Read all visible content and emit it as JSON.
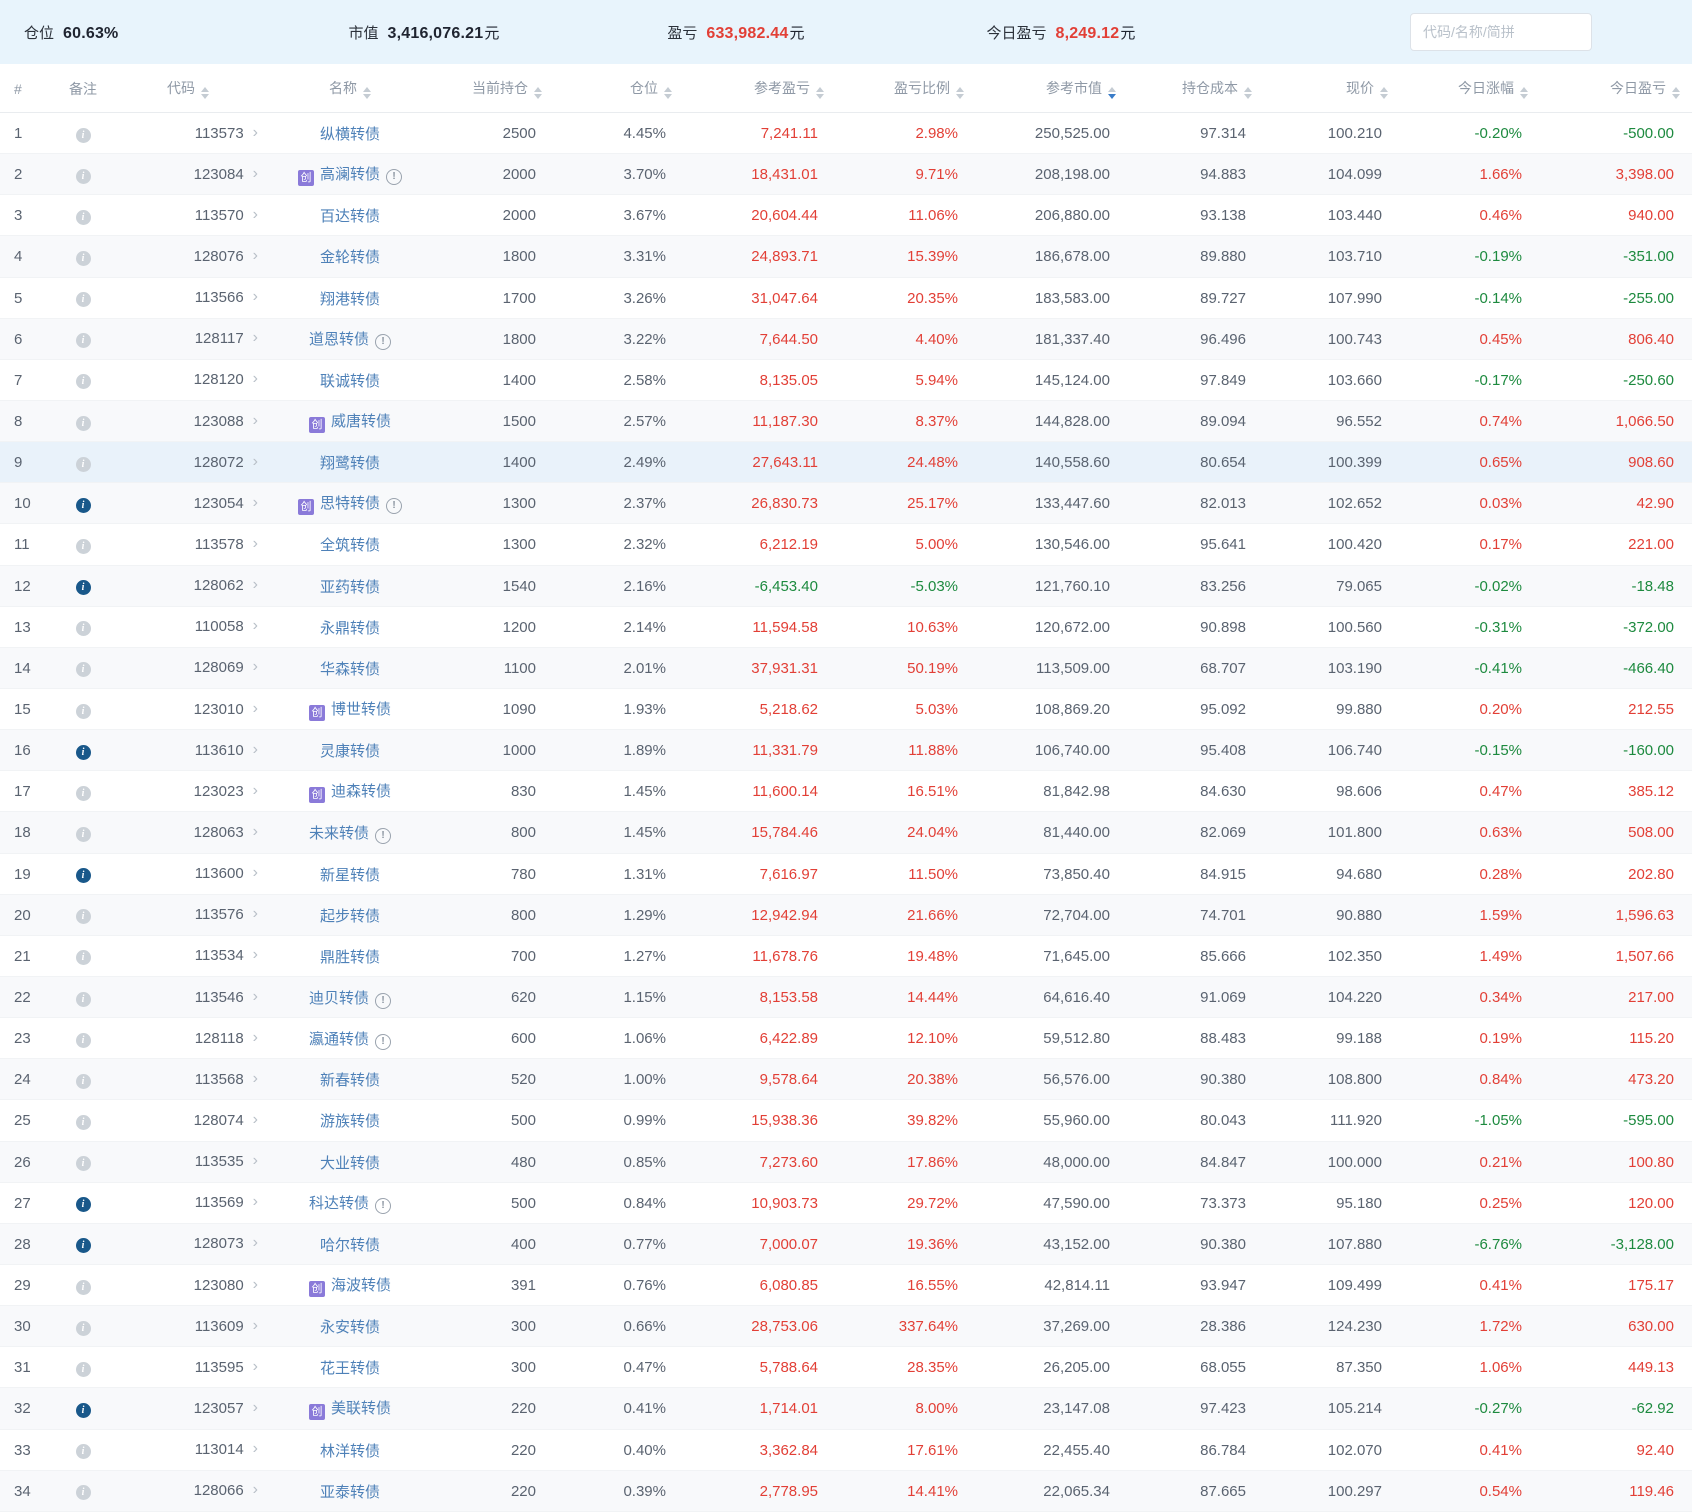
{
  "stats": {
    "position_label": "仓位",
    "position_value": "60.63%",
    "market_value_label": "市值",
    "market_value": "3,416,076.21",
    "pnl_label": "盈亏",
    "pnl_value": "633,982.44",
    "today_pnl_label": "今日盈亏",
    "today_pnl_value": "8,249.12",
    "currency_suffix": "元",
    "search_placeholder": "代码/名称/简拼"
  },
  "colors": {
    "up_red": "#e23f36",
    "down_green": "#1d8a3f",
    "name_blue": "#4e81b8",
    "badge_purple": "#8a7ad9",
    "note_blue": "#19588a",
    "bar_bg": "#e8f4fc"
  },
  "table": {
    "columns": [
      "#",
      "备注",
      "代码",
      "名称",
      "当前持仓",
      "仓位",
      "参考盈亏",
      "盈亏比例",
      "参考市值",
      "持仓成本",
      "现价",
      "今日涨幅",
      "今日盈亏"
    ],
    "sorted_column": "参考市值",
    "sort_direction": "desc",
    "cyb_badge": "创",
    "rows": [
      {
        "num": 1,
        "note": false,
        "code": "113573",
        "name": "纵横转债",
        "cyb": false,
        "warn": false,
        "qty": "2500",
        "pos": "4.45%",
        "pnl": "7,241.11",
        "ratio": "2.98%",
        "mv": "250,525.00",
        "cost": "97.314",
        "price": "100.210",
        "chg": "-0.20%",
        "today": "-500.00",
        "highlight": false
      },
      {
        "num": 2,
        "note": false,
        "code": "123084",
        "name": "高澜转债",
        "cyb": true,
        "warn": true,
        "qty": "2000",
        "pos": "3.70%",
        "pnl": "18,431.01",
        "ratio": "9.71%",
        "mv": "208,198.00",
        "cost": "94.883",
        "price": "104.099",
        "chg": "1.66%",
        "today": "3,398.00",
        "highlight": false
      },
      {
        "num": 3,
        "note": false,
        "code": "113570",
        "name": "百达转债",
        "cyb": false,
        "warn": false,
        "qty": "2000",
        "pos": "3.67%",
        "pnl": "20,604.44",
        "ratio": "11.06%",
        "mv": "206,880.00",
        "cost": "93.138",
        "price": "103.440",
        "chg": "0.46%",
        "today": "940.00",
        "highlight": false
      },
      {
        "num": 4,
        "note": false,
        "code": "128076",
        "name": "金轮转债",
        "cyb": false,
        "warn": false,
        "qty": "1800",
        "pos": "3.31%",
        "pnl": "24,893.71",
        "ratio": "15.39%",
        "mv": "186,678.00",
        "cost": "89.880",
        "price": "103.710",
        "chg": "-0.19%",
        "today": "-351.00",
        "highlight": false
      },
      {
        "num": 5,
        "note": false,
        "code": "113566",
        "name": "翔港转债",
        "cyb": false,
        "warn": false,
        "qty": "1700",
        "pos": "3.26%",
        "pnl": "31,047.64",
        "ratio": "20.35%",
        "mv": "183,583.00",
        "cost": "89.727",
        "price": "107.990",
        "chg": "-0.14%",
        "today": "-255.00",
        "highlight": false
      },
      {
        "num": 6,
        "note": false,
        "code": "128117",
        "name": "道恩转债",
        "cyb": false,
        "warn": true,
        "qty": "1800",
        "pos": "3.22%",
        "pnl": "7,644.50",
        "ratio": "4.40%",
        "mv": "181,337.40",
        "cost": "96.496",
        "price": "100.743",
        "chg": "0.45%",
        "today": "806.40",
        "highlight": false
      },
      {
        "num": 7,
        "note": false,
        "code": "128120",
        "name": "联诚转债",
        "cyb": false,
        "warn": false,
        "qty": "1400",
        "pos": "2.58%",
        "pnl": "8,135.05",
        "ratio": "5.94%",
        "mv": "145,124.00",
        "cost": "97.849",
        "price": "103.660",
        "chg": "-0.17%",
        "today": "-250.60",
        "highlight": false
      },
      {
        "num": 8,
        "note": false,
        "code": "123088",
        "name": "威唐转债",
        "cyb": true,
        "warn": false,
        "qty": "1500",
        "pos": "2.57%",
        "pnl": "11,187.30",
        "ratio": "8.37%",
        "mv": "144,828.00",
        "cost": "89.094",
        "price": "96.552",
        "chg": "0.74%",
        "today": "1,066.50",
        "highlight": false
      },
      {
        "num": 9,
        "note": false,
        "code": "128072",
        "name": "翔鹭转债",
        "cyb": false,
        "warn": false,
        "qty": "1400",
        "pos": "2.49%",
        "pnl": "27,643.11",
        "ratio": "24.48%",
        "mv": "140,558.60",
        "cost": "80.654",
        "price": "100.399",
        "chg": "0.65%",
        "today": "908.60",
        "highlight": true
      },
      {
        "num": 10,
        "note": true,
        "code": "123054",
        "name": "思特转债",
        "cyb": true,
        "warn": true,
        "qty": "1300",
        "pos": "2.37%",
        "pnl": "26,830.73",
        "ratio": "25.17%",
        "mv": "133,447.60",
        "cost": "82.013",
        "price": "102.652",
        "chg": "0.03%",
        "today": "42.90",
        "highlight": false
      },
      {
        "num": 11,
        "note": false,
        "code": "113578",
        "name": "全筑转债",
        "cyb": false,
        "warn": false,
        "qty": "1300",
        "pos": "2.32%",
        "pnl": "6,212.19",
        "ratio": "5.00%",
        "mv": "130,546.00",
        "cost": "95.641",
        "price": "100.420",
        "chg": "0.17%",
        "today": "221.00",
        "highlight": false
      },
      {
        "num": 12,
        "note": true,
        "code": "128062",
        "name": "亚药转债",
        "cyb": false,
        "warn": false,
        "qty": "1540",
        "pos": "2.16%",
        "pnl": "-6,453.40",
        "ratio": "-5.03%",
        "mv": "121,760.10",
        "cost": "83.256",
        "price": "79.065",
        "chg": "-0.02%",
        "today": "-18.48",
        "highlight": false
      },
      {
        "num": 13,
        "note": false,
        "code": "110058",
        "name": "永鼎转债",
        "cyb": false,
        "warn": false,
        "qty": "1200",
        "pos": "2.14%",
        "pnl": "11,594.58",
        "ratio": "10.63%",
        "mv": "120,672.00",
        "cost": "90.898",
        "price": "100.560",
        "chg": "-0.31%",
        "today": "-372.00",
        "highlight": false
      },
      {
        "num": 14,
        "note": false,
        "code": "128069",
        "name": "华森转债",
        "cyb": false,
        "warn": false,
        "qty": "1100",
        "pos": "2.01%",
        "pnl": "37,931.31",
        "ratio": "50.19%",
        "mv": "113,509.00",
        "cost": "68.707",
        "price": "103.190",
        "chg": "-0.41%",
        "today": "-466.40",
        "highlight": false
      },
      {
        "num": 15,
        "note": false,
        "code": "123010",
        "name": "博世转债",
        "cyb": true,
        "warn": false,
        "qty": "1090",
        "pos": "1.93%",
        "pnl": "5,218.62",
        "ratio": "5.03%",
        "mv": "108,869.20",
        "cost": "95.092",
        "price": "99.880",
        "chg": "0.20%",
        "today": "212.55",
        "highlight": false
      },
      {
        "num": 16,
        "note": true,
        "code": "113610",
        "name": "灵康转债",
        "cyb": false,
        "warn": false,
        "qty": "1000",
        "pos": "1.89%",
        "pnl": "11,331.79",
        "ratio": "11.88%",
        "mv": "106,740.00",
        "cost": "95.408",
        "price": "106.740",
        "chg": "-0.15%",
        "today": "-160.00",
        "highlight": false
      },
      {
        "num": 17,
        "note": false,
        "code": "123023",
        "name": "迪森转债",
        "cyb": true,
        "warn": false,
        "qty": "830",
        "pos": "1.45%",
        "pnl": "11,600.14",
        "ratio": "16.51%",
        "mv": "81,842.98",
        "cost": "84.630",
        "price": "98.606",
        "chg": "0.47%",
        "today": "385.12",
        "highlight": false
      },
      {
        "num": 18,
        "note": false,
        "code": "128063",
        "name": "未来转债",
        "cyb": false,
        "warn": true,
        "qty": "800",
        "pos": "1.45%",
        "pnl": "15,784.46",
        "ratio": "24.04%",
        "mv": "81,440.00",
        "cost": "82.069",
        "price": "101.800",
        "chg": "0.63%",
        "today": "508.00",
        "highlight": false
      },
      {
        "num": 19,
        "note": true,
        "code": "113600",
        "name": "新星转债",
        "cyb": false,
        "warn": false,
        "qty": "780",
        "pos": "1.31%",
        "pnl": "7,616.97",
        "ratio": "11.50%",
        "mv": "73,850.40",
        "cost": "84.915",
        "price": "94.680",
        "chg": "0.28%",
        "today": "202.80",
        "highlight": false
      },
      {
        "num": 20,
        "note": false,
        "code": "113576",
        "name": "起步转债",
        "cyb": false,
        "warn": false,
        "qty": "800",
        "pos": "1.29%",
        "pnl": "12,942.94",
        "ratio": "21.66%",
        "mv": "72,704.00",
        "cost": "74.701",
        "price": "90.880",
        "chg": "1.59%",
        "today": "1,596.63",
        "highlight": false
      },
      {
        "num": 21,
        "note": false,
        "code": "113534",
        "name": "鼎胜转债",
        "cyb": false,
        "warn": false,
        "qty": "700",
        "pos": "1.27%",
        "pnl": "11,678.76",
        "ratio": "19.48%",
        "mv": "71,645.00",
        "cost": "85.666",
        "price": "102.350",
        "chg": "1.49%",
        "today": "1,507.66",
        "highlight": false
      },
      {
        "num": 22,
        "note": false,
        "code": "113546",
        "name": "迪贝转债",
        "cyb": false,
        "warn": true,
        "qty": "620",
        "pos": "1.15%",
        "pnl": "8,153.58",
        "ratio": "14.44%",
        "mv": "64,616.40",
        "cost": "91.069",
        "price": "104.220",
        "chg": "0.34%",
        "today": "217.00",
        "highlight": false
      },
      {
        "num": 23,
        "note": false,
        "code": "128118",
        "name": "瀛通转债",
        "cyb": false,
        "warn": true,
        "qty": "600",
        "pos": "1.06%",
        "pnl": "6,422.89",
        "ratio": "12.10%",
        "mv": "59,512.80",
        "cost": "88.483",
        "price": "99.188",
        "chg": "0.19%",
        "today": "115.20",
        "highlight": false
      },
      {
        "num": 24,
        "note": false,
        "code": "113568",
        "name": "新春转债",
        "cyb": false,
        "warn": false,
        "qty": "520",
        "pos": "1.00%",
        "pnl": "9,578.64",
        "ratio": "20.38%",
        "mv": "56,576.00",
        "cost": "90.380",
        "price": "108.800",
        "chg": "0.84%",
        "today": "473.20",
        "highlight": false
      },
      {
        "num": 25,
        "note": false,
        "code": "128074",
        "name": "游族转债",
        "cyb": false,
        "warn": false,
        "qty": "500",
        "pos": "0.99%",
        "pnl": "15,938.36",
        "ratio": "39.82%",
        "mv": "55,960.00",
        "cost": "80.043",
        "price": "111.920",
        "chg": "-1.05%",
        "today": "-595.00",
        "highlight": false
      },
      {
        "num": 26,
        "note": false,
        "code": "113535",
        "name": "大业转债",
        "cyb": false,
        "warn": false,
        "qty": "480",
        "pos": "0.85%",
        "pnl": "7,273.60",
        "ratio": "17.86%",
        "mv": "48,000.00",
        "cost": "84.847",
        "price": "100.000",
        "chg": "0.21%",
        "today": "100.80",
        "highlight": false
      },
      {
        "num": 27,
        "note": true,
        "code": "113569",
        "name": "科达转债",
        "cyb": false,
        "warn": true,
        "qty": "500",
        "pos": "0.84%",
        "pnl": "10,903.73",
        "ratio": "29.72%",
        "mv": "47,590.00",
        "cost": "73.373",
        "price": "95.180",
        "chg": "0.25%",
        "today": "120.00",
        "highlight": false
      },
      {
        "num": 28,
        "note": true,
        "code": "128073",
        "name": "哈尔转债",
        "cyb": false,
        "warn": false,
        "qty": "400",
        "pos": "0.77%",
        "pnl": "7,000.07",
        "ratio": "19.36%",
        "mv": "43,152.00",
        "cost": "90.380",
        "price": "107.880",
        "chg": "-6.76%",
        "today": "-3,128.00",
        "highlight": false
      },
      {
        "num": 29,
        "note": false,
        "code": "123080",
        "name": "海波转债",
        "cyb": true,
        "warn": false,
        "qty": "391",
        "pos": "0.76%",
        "pnl": "6,080.85",
        "ratio": "16.55%",
        "mv": "42,814.11",
        "cost": "93.947",
        "price": "109.499",
        "chg": "0.41%",
        "today": "175.17",
        "highlight": false
      },
      {
        "num": 30,
        "note": false,
        "code": "113609",
        "name": "永安转债",
        "cyb": false,
        "warn": false,
        "qty": "300",
        "pos": "0.66%",
        "pnl": "28,753.06",
        "ratio": "337.64%",
        "mv": "37,269.00",
        "cost": "28.386",
        "price": "124.230",
        "chg": "1.72%",
        "today": "630.00",
        "highlight": false
      },
      {
        "num": 31,
        "note": false,
        "code": "113595",
        "name": "花王转债",
        "cyb": false,
        "warn": false,
        "qty": "300",
        "pos": "0.47%",
        "pnl": "5,788.64",
        "ratio": "28.35%",
        "mv": "26,205.00",
        "cost": "68.055",
        "price": "87.350",
        "chg": "1.06%",
        "today": "449.13",
        "highlight": false
      },
      {
        "num": 32,
        "note": true,
        "code": "123057",
        "name": "美联转债",
        "cyb": true,
        "warn": false,
        "qty": "220",
        "pos": "0.41%",
        "pnl": "1,714.01",
        "ratio": "8.00%",
        "mv": "23,147.08",
        "cost": "97.423",
        "price": "105.214",
        "chg": "-0.27%",
        "today": "-62.92",
        "highlight": false
      },
      {
        "num": 33,
        "note": false,
        "code": "113014",
        "name": "林洋转债",
        "cyb": false,
        "warn": false,
        "qty": "220",
        "pos": "0.40%",
        "pnl": "3,362.84",
        "ratio": "17.61%",
        "mv": "22,455.40",
        "cost": "86.784",
        "price": "102.070",
        "chg": "0.41%",
        "today": "92.40",
        "highlight": false
      },
      {
        "num": 34,
        "note": false,
        "code": "128066",
        "name": "亚泰转债",
        "cyb": false,
        "warn": false,
        "qty": "220",
        "pos": "0.39%",
        "pnl": "2,778.95",
        "ratio": "14.41%",
        "mv": "22,065.34",
        "cost": "87.665",
        "price": "100.297",
        "chg": "0.54%",
        "today": "119.46",
        "highlight": false
      }
    ]
  }
}
